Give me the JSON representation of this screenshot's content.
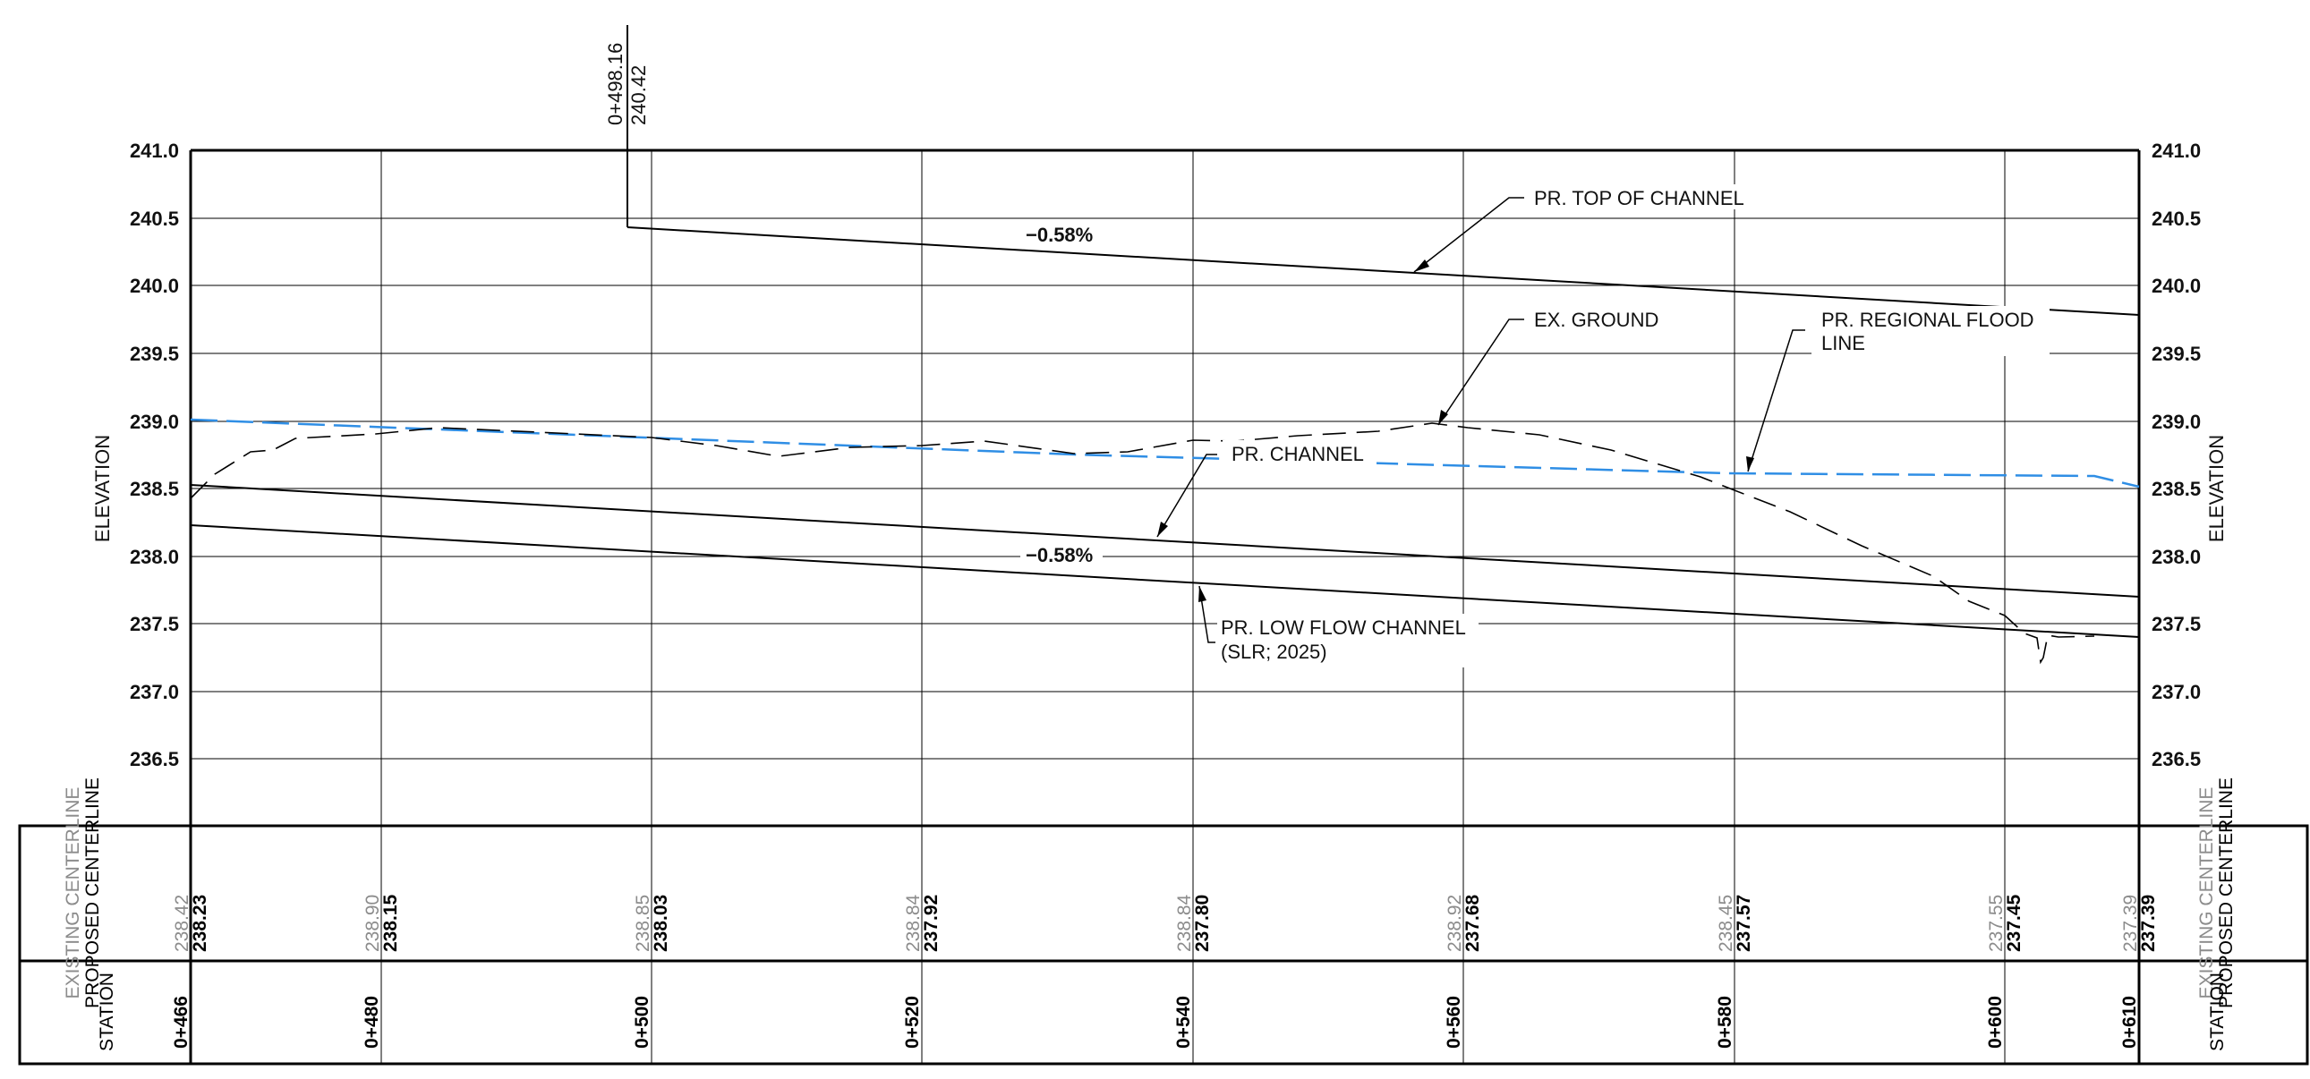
{
  "vertical_axis": {
    "label": "ELEVATION",
    "ticks": [
      "241.0",
      "240.5",
      "240.0",
      "239.5",
      "239.0",
      "238.5",
      "238.0",
      "237.5",
      "237.0",
      "236.5"
    ]
  },
  "station_marker": {
    "station": "0+498.16",
    "elevation": "240.42"
  },
  "callouts": {
    "top_of_channel": "PR. TOP OF CHANNEL",
    "ex_ground": "EX. GROUND",
    "flood_line_1": "PR. REGIONAL FLOOD",
    "flood_line_2": "LINE",
    "channel": "PR. CHANNEL",
    "low_flow_1": "PR. LOW FLOW CHANNEL",
    "low_flow_2": "(SLR; 2025)"
  },
  "slopes": {
    "top": "−0.58%",
    "channel": "−0.58%"
  },
  "table": {
    "existing_label": "EXISTING CENTERLINE",
    "proposed_label": "PROPOSED CENTERLINE",
    "station_label": "STATION",
    "columns": [
      {
        "station": "0+466",
        "existing": "238.42",
        "proposed": "238.23"
      },
      {
        "station": "0+480",
        "existing": "238.90",
        "proposed": "238.15"
      },
      {
        "station": "0+500",
        "existing": "238.85",
        "proposed": "238.03"
      },
      {
        "station": "0+520",
        "existing": "238.84",
        "proposed": "237.92"
      },
      {
        "station": "0+540",
        "existing": "238.84",
        "proposed": "237.80"
      },
      {
        "station": "0+560",
        "existing": "238.92",
        "proposed": "237.68"
      },
      {
        "station": "0+580",
        "existing": "238.45",
        "proposed": "237.57"
      },
      {
        "station": "0+600",
        "existing": "237.55",
        "proposed": "237.45"
      },
      {
        "station": "0+610",
        "existing": "237.39",
        "proposed": "237.39"
      }
    ]
  },
  "colors": {
    "linework": "#000000",
    "flood_line": "#2f8ee5",
    "existing_text": "#8c8c8c"
  }
}
